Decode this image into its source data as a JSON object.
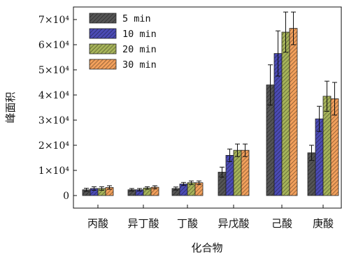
{
  "chart_data": {
    "type": "bar",
    "xlabel": "化合物",
    "ylabel": "峰面积",
    "categories": [
      "丙酸",
      "异丁酸",
      "丁酸",
      "异戊酸",
      "己酸",
      "庚酸"
    ],
    "ylim": [
      -5000,
      75000
    ],
    "yticks": [
      0,
      10000,
      20000,
      30000,
      40000,
      50000,
      60000,
      70000
    ],
    "ytick_labels": [
      "0",
      "1×10⁴",
      "2×10⁴",
      "3×10⁴",
      "4×10⁴",
      "5×10⁴",
      "6×10⁴",
      "7×10⁴"
    ],
    "legend_position": "top-left",
    "series": [
      {
        "name": "5 min",
        "color": "#555555",
        "values": [
          2300,
          2300,
          2800,
          9300,
          44000,
          17000
        ],
        "errors": [
          600,
          500,
          600,
          2000,
          8000,
          3000
        ]
      },
      {
        "name": "10 min",
        "color": "#4b4bb5",
        "values": [
          2800,
          2300,
          4600,
          16000,
          56500,
          30500
        ],
        "errors": [
          700,
          500,
          600,
          2500,
          9000,
          5000
        ]
      },
      {
        "name": "20 min",
        "color": "#a6b35a",
        "values": [
          2800,
          3000,
          5100,
          18000,
          65000,
          39500
        ],
        "errors": [
          700,
          500,
          700,
          2500,
          8000,
          6000
        ]
      },
      {
        "name": "30 min",
        "color": "#f2a05c",
        "values": [
          3200,
          3300,
          5100,
          18000,
          66500,
          38500
        ],
        "errors": [
          700,
          600,
          700,
          2500,
          6500,
          6500
        ]
      }
    ]
  }
}
